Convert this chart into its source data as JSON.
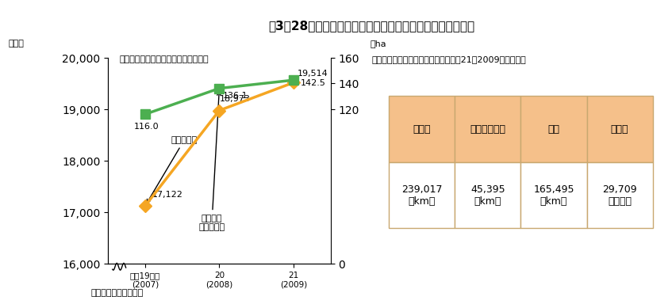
{
  "title": "図3－28　農地・水・環境保全向上対策（共同活動）の実績",
  "chart_subtitle_left": "（取組状況の推移（組織数、面積））",
  "chart_subtitle_right": "（保全活動を実施している施設（平成21（2009）年度））",
  "source": "資料：農林水産省調べ",
  "x_labels": [
    "平成19年度\n(2007)",
    "20\n(2008)",
    "21\n(2009)"
  ],
  "orange_line": [
    17122,
    18973,
    19514
  ],
  "orange_labels": [
    "17,122",
    "18,973",
    "19,514"
  ],
  "green_line": [
    116.0,
    136.1,
    142.5
  ],
  "green_labels": [
    "116.0",
    "136.1",
    "142.5"
  ],
  "left_ylabel": "組織数",
  "right_ylabel": "万ha",
  "left_ylim": [
    16000,
    20000
  ],
  "left_yticks": [
    16000,
    17000,
    18000,
    19000,
    20000
  ],
  "right_ylim": [
    0,
    160
  ],
  "right_yticks": [
    0,
    120,
    140,
    160
  ],
  "orange_color": "#F5A623",
  "green_color": "#4CAF50",
  "annotation_org": "活動組織数",
  "annotation_area": "取組面積\n（右目盛）",
  "table_headers": [
    "開水路",
    "パイプライン",
    "農道",
    "ため池"
  ],
  "table_values": [
    "239,017\n（km）",
    "45,395\n（km）",
    "165,495\n（km）",
    "29,709\n（か所）"
  ],
  "table_header_bg": "#F5C08A",
  "table_value_bg": "#FFFFFF",
  "table_border_color": "#C8A870",
  "title_bg_color": "#D4E6A5",
  "background_color": "#FFFFFF"
}
